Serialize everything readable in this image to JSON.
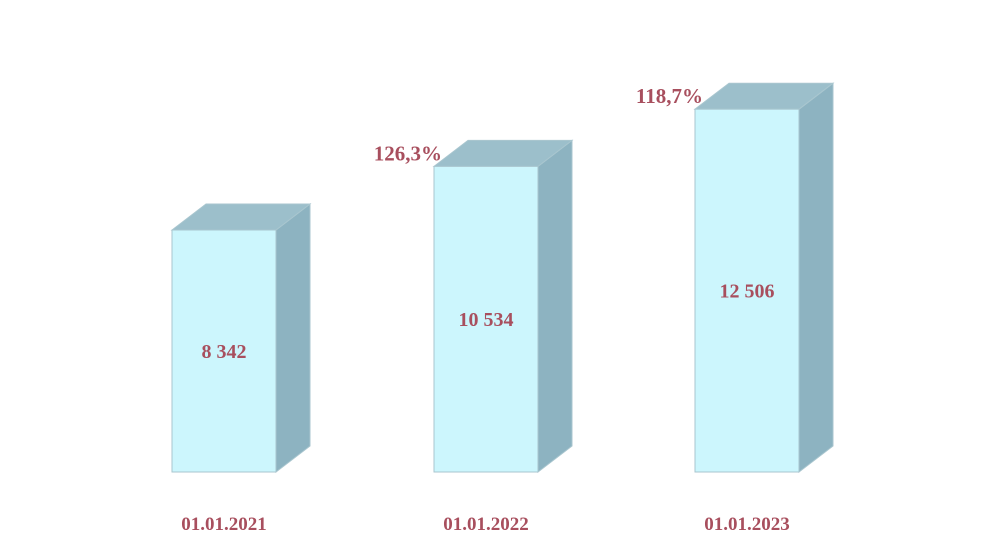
{
  "chart_data": {
    "type": "bar",
    "style": "3d-column",
    "categories": [
      "01.01.2021",
      "01.01.2022",
      "01.01.2023"
    ],
    "values": [
      8342,
      10534,
      12506
    ],
    "value_labels": [
      "8 342",
      "10 534",
      "12 506"
    ],
    "growth_labels": [
      "",
      "126,3%",
      "118,7%"
    ],
    "title": "",
    "xlabel": "",
    "ylabel": "",
    "ylim": [
      0,
      14000
    ],
    "grid": false,
    "legend": "none"
  },
  "colors": {
    "bar_front": "#ccf6fd",
    "bar_top": "#9cbfcb",
    "bar_side": "#8db3c1",
    "bar_edge": "#a9c6cf",
    "label_text": "#a84f5e"
  }
}
